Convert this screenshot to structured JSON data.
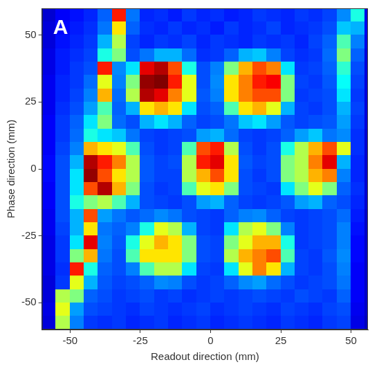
{
  "chart_data": {
    "type": "heatmap",
    "panel_label": "A",
    "x_label": "Readout direction (mm)",
    "y_label": "Phase direction (mm)",
    "xlim": [
      -60,
      56
    ],
    "ylim": [
      -60,
      60
    ],
    "xticks": [
      -50,
      -25,
      0,
      25,
      50
    ],
    "yticks": [
      -50,
      -25,
      0,
      25,
      50
    ],
    "grid": false,
    "color_range": [
      0,
      10
    ],
    "x": [
      -57.5,
      -52.5,
      -47.5,
      -42.5,
      -37.5,
      -32.5,
      -27.5,
      -22.5,
      -17.5,
      -12.5,
      -7.5,
      -2.5,
      2.5,
      7.5,
      12.5,
      17.5,
      22.5,
      27.5,
      32.5,
      37.5,
      42.5,
      47.5,
      52.5,
      57.5
    ],
    "y": [
      57.5,
      52.5,
      47.5,
      42.5,
      37.5,
      32.5,
      27.5,
      22.5,
      17.5,
      12.5,
      7.5,
      2.5,
      -2.5,
      -7.5,
      -12.5,
      -17.5,
      -22.5,
      -27.5,
      -32.5,
      -37.5,
      -42.5,
      -47.5,
      -52.5,
      -57.5
    ],
    "cells": [
      [
        0.8,
        1.2,
        1.4,
        1.6,
        2.2,
        8.5,
        2.4,
        1.6,
        1.7,
        1.5,
        1.8,
        1.6,
        1.7,
        1.5,
        1.6,
        1.8,
        1.7,
        1.6,
        1.8,
        1.7,
        1.9,
        2.6,
        4.0,
        1.0
      ],
      [
        0.9,
        1.3,
        1.5,
        1.7,
        2.4,
        6.5,
        2.2,
        1.7,
        1.6,
        1.8,
        1.6,
        1.7,
        1.5,
        1.8,
        1.6,
        1.7,
        1.9,
        1.6,
        1.7,
        1.8,
        2.0,
        3.2,
        3.0,
        1.1
      ],
      [
        0.9,
        1.4,
        1.6,
        1.8,
        3.0,
        5.5,
        1.9,
        1.6,
        1.8,
        1.7,
        1.9,
        1.6,
        1.8,
        1.7,
        1.6,
        1.8,
        1.7,
        1.8,
        1.6,
        1.9,
        2.2,
        4.5,
        2.5,
        1.0
      ],
      [
        1.0,
        1.5,
        1.7,
        1.9,
        4.0,
        5.0,
        2.0,
        2.4,
        3.0,
        3.0,
        2.3,
        1.7,
        1.8,
        2.2,
        3.0,
        3.2,
        2.5,
        1.9,
        1.7,
        1.8,
        2.3,
        5.0,
        2.2,
        0.9
      ],
      [
        1.0,
        1.5,
        1.8,
        2.0,
        8.5,
        2.6,
        3.5,
        9.0,
        9.5,
        8.0,
        4.0,
        2.0,
        2.5,
        5.0,
        7.0,
        8.0,
        7.5,
        3.5,
        1.8,
        1.9,
        2.2,
        4.2,
        2.0,
        0.9
      ],
      [
        1.1,
        1.6,
        1.8,
        2.3,
        6.0,
        2.5,
        5.0,
        9.8,
        10.0,
        8.5,
        6.0,
        2.0,
        2.6,
        6.5,
        7.5,
        8.5,
        8.8,
        5.0,
        1.9,
        1.8,
        2.1,
        3.8,
        1.9,
        0.9
      ],
      [
        1.1,
        1.6,
        1.9,
        2.5,
        7.0,
        2.3,
        5.5,
        9.5,
        9.0,
        7.5,
        6.0,
        2.1,
        2.5,
        6.5,
        7.5,
        8.0,
        8.0,
        5.0,
        1.8,
        1.9,
        2.0,
        3.5,
        1.8,
        0.9
      ],
      [
        1.1,
        1.7,
        2.0,
        2.8,
        4.5,
        2.2,
        3.0,
        6.5,
        7.0,
        6.5,
        3.5,
        2.0,
        2.2,
        4.5,
        6.5,
        7.0,
        6.0,
        3.0,
        1.9,
        1.8,
        2.0,
        3.0,
        1.9,
        0.9
      ],
      [
        1.2,
        1.8,
        2.2,
        3.5,
        5.0,
        2.3,
        2.0,
        3.0,
        3.5,
        3.0,
        2.2,
        1.9,
        2.0,
        2.4,
        3.2,
        3.5,
        2.8,
        2.1,
        1.9,
        2.0,
        2.1,
        2.8,
        1.8,
        0.9
      ],
      [
        1.2,
        1.8,
        2.3,
        4.0,
        3.5,
        3.2,
        2.4,
        1.9,
        1.8,
        1.9,
        2.0,
        2.8,
        3.0,
        2.3,
        1.9,
        1.8,
        1.9,
        2.2,
        2.8,
        3.2,
        2.4,
        2.6,
        1.7,
        0.8
      ],
      [
        1.2,
        1.9,
        2.5,
        7.0,
        6.5,
        6.0,
        4.5,
        2.0,
        1.8,
        1.9,
        4.5,
        8.0,
        8.5,
        5.5,
        2.0,
        1.8,
        2.0,
        4.0,
        5.5,
        7.0,
        8.0,
        6.0,
        1.7,
        0.8
      ],
      [
        1.3,
        2.0,
        3.0,
        9.5,
        8.5,
        7.5,
        5.5,
        2.1,
        1.9,
        2.0,
        5.5,
        8.5,
        9.0,
        6.5,
        2.1,
        1.9,
        2.0,
        5.0,
        5.5,
        7.5,
        9.0,
        3.0,
        1.6,
        0.8
      ],
      [
        1.3,
        2.0,
        3.5,
        9.8,
        8.0,
        6.5,
        5.5,
        2.1,
        1.9,
        1.9,
        5.5,
        7.0,
        8.0,
        6.5,
        2.0,
        1.8,
        2.0,
        5.0,
        5.5,
        7.0,
        7.5,
        2.5,
        1.6,
        0.8
      ],
      [
        1.2,
        2.0,
        3.5,
        8.0,
        9.5,
        7.0,
        5.0,
        2.0,
        1.8,
        1.9,
        4.5,
        6.0,
        6.5,
        5.0,
        2.0,
        1.9,
        1.8,
        3.5,
        5.0,
        6.0,
        5.0,
        2.2,
        1.7,
        0.8
      ],
      [
        1.2,
        2.0,
        4.0,
        5.0,
        5.5,
        4.5,
        3.0,
        2.0,
        1.9,
        1.8,
        2.0,
        2.8,
        3.0,
        2.2,
        1.9,
        1.8,
        1.9,
        2.1,
        2.8,
        3.0,
        2.2,
        2.0,
        1.6,
        0.8
      ],
      [
        1.1,
        2.0,
        3.0,
        8.0,
        2.8,
        2.4,
        2.1,
        2.3,
        2.6,
        2.4,
        2.0,
        1.9,
        1.8,
        2.2,
        2.5,
        2.6,
        2.2,
        1.9,
        1.8,
        1.9,
        2.0,
        2.3,
        1.5,
        0.7
      ],
      [
        1.1,
        1.9,
        3.0,
        6.5,
        2.4,
        2.2,
        2.5,
        4.0,
        6.0,
        5.5,
        3.0,
        1.9,
        1.8,
        3.5,
        5.5,
        6.0,
        5.0,
        2.5,
        1.8,
        1.9,
        2.0,
        2.5,
        1.4,
        0.7
      ],
      [
        1.0,
        1.8,
        3.5,
        9.0,
        2.5,
        2.1,
        4.0,
        6.0,
        7.0,
        6.5,
        5.0,
        2.0,
        1.9,
        5.0,
        6.0,
        7.0,
        7.0,
        4.0,
        1.8,
        1.9,
        2.0,
        2.5,
        1.3,
        0.7
      ],
      [
        1.0,
        1.8,
        5.0,
        7.0,
        2.4,
        2.0,
        4.5,
        6.5,
        6.5,
        6.5,
        5.0,
        2.0,
        1.9,
        5.5,
        7.0,
        7.5,
        8.0,
        4.5,
        1.9,
        1.8,
        2.1,
        2.6,
        1.3,
        0.7
      ],
      [
        1.0,
        1.7,
        8.5,
        4.0,
        2.2,
        2.0,
        2.5,
        4.5,
        5.5,
        5.5,
        3.5,
        1.9,
        1.8,
        3.5,
        6.0,
        7.5,
        6.5,
        3.0,
        1.9,
        1.8,
        2.0,
        2.5,
        1.2,
        0.7
      ],
      [
        0.9,
        1.8,
        6.0,
        3.0,
        2.1,
        1.9,
        2.0,
        2.2,
        2.6,
        2.5,
        2.0,
        1.8,
        1.9,
        2.2,
        2.6,
        2.8,
        2.3,
        2.0,
        1.8,
        1.9,
        2.0,
        2.4,
        1.2,
        0.7
      ],
      [
        0.9,
        5.5,
        5.0,
        2.2,
        2.0,
        1.8,
        1.9,
        2.0,
        1.8,
        1.9,
        1.7,
        1.8,
        1.9,
        1.8,
        1.9,
        2.0,
        1.9,
        1.8,
        2.0,
        1.9,
        1.8,
        2.2,
        1.2,
        0.7
      ],
      [
        1.0,
        6.0,
        2.8,
        2.0,
        1.9,
        1.8,
        1.7,
        1.9,
        1.8,
        1.7,
        1.8,
        1.9,
        1.7,
        1.8,
        1.9,
        1.8,
        1.7,
        1.9,
        1.8,
        1.7,
        1.9,
        2.0,
        1.1,
        0.7
      ],
      [
        0.9,
        5.5,
        2.5,
        1.8,
        1.7,
        1.8,
        1.6,
        1.7,
        1.8,
        1.6,
        1.7,
        1.8,
        1.6,
        1.7,
        1.8,
        1.7,
        1.6,
        1.8,
        1.7,
        1.6,
        1.8,
        1.9,
        1.0,
        0.6
      ]
    ]
  }
}
